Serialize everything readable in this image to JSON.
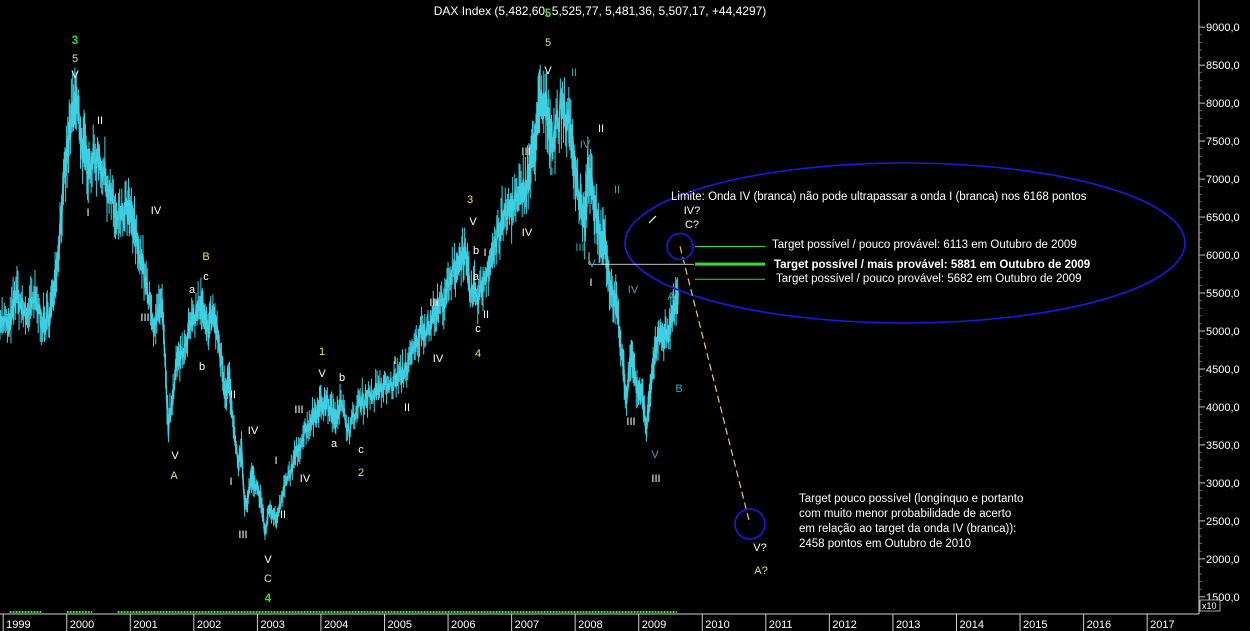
{
  "colors": {
    "background": "#000000",
    "price": "#3fd0e0",
    "yellow": "#e8e060",
    "green": "#33dd33",
    "white": "#ffffff",
    "blue": "#1a1ae0",
    "cyan_label": "#2fa8b8",
    "target_line": "#33dd33",
    "projection": "#e8c070"
  },
  "chart_data": {
    "type": "line",
    "title": "DAX Index (5,482,60, 5,525,77, 5,481,36, 5,507,17, +44,4297)",
    "x_ticks": [
      "1999",
      "2000",
      "2001",
      "2002",
      "2003",
      "2004",
      "2005",
      "2006",
      "2007",
      "2008",
      "2009",
      "2010",
      "2011",
      "2012",
      "2013",
      "2014",
      "2015",
      "2016",
      "2017"
    ],
    "y_ticks": [
      "1500,0",
      "2000,0",
      "2500,0",
      "3000,0",
      "3500,0",
      "4000,0",
      "4500,0",
      "5000,0",
      "5500,0",
      "6000,0",
      "6500,0",
      "7000,0",
      "7500,0",
      "8000,0",
      "8500,0",
      "9000,0"
    ],
    "y_unit_label": "x10",
    "ylim": [
      1300,
      9200
    ],
    "xlim": [
      1998.95,
      2017.8
    ],
    "series": [
      {
        "name": "DAX",
        "x": [
          1998.95,
          1999.1,
          1999.2,
          1999.35,
          1999.5,
          1999.65,
          1999.75,
          1999.85,
          1999.95,
          2000.05,
          2000.15,
          2000.25,
          2000.35,
          2000.5,
          2000.65,
          2000.8,
          2000.95,
          2001.05,
          2001.2,
          2001.35,
          2001.5,
          2001.6,
          2001.71,
          2001.8,
          2001.95,
          2002.1,
          2002.2,
          2002.3,
          2002.4,
          2002.5,
          2002.55,
          2002.6,
          2002.7,
          2002.75,
          2002.8,
          2002.9,
          2002.95,
          2003.05,
          2003.12,
          2003.2,
          2003.3,
          2003.45,
          2003.6,
          2003.75,
          2003.9,
          2004.0,
          2004.1,
          2004.2,
          2004.3,
          2004.45,
          2004.6,
          2004.75,
          2004.95,
          2005.1,
          2005.25,
          2005.4,
          2005.55,
          2005.7,
          2005.85,
          2006.0,
          2006.15,
          2006.25,
          2006.35,
          2006.5,
          2006.65,
          2006.8,
          2006.95,
          2007.1,
          2007.25,
          2007.35,
          2007.45,
          2007.55,
          2007.65,
          2007.8,
          2007.95,
          2008.05,
          2008.15,
          2008.2,
          2008.3,
          2008.4,
          2008.45,
          2008.55,
          2008.65,
          2008.75,
          2008.8,
          2008.88,
          2008.95,
          2009.05,
          2009.12,
          2009.18,
          2009.25,
          2009.35,
          2009.45,
          2009.55,
          2009.62
        ],
        "y": [
          5150,
          5050,
          5500,
          5200,
          5400,
          5050,
          5300,
          5900,
          6900,
          7650,
          8050,
          7400,
          7200,
          7300,
          6900,
          6400,
          6600,
          6350,
          5850,
          5100,
          5300,
          3700,
          4500,
          4700,
          5100,
          5350,
          5000,
          5250,
          4800,
          4200,
          4350,
          3900,
          3200,
          3500,
          2650,
          3050,
          3000,
          2800,
          2350,
          2700,
          2500,
          3000,
          3350,
          3700,
          3900,
          4050,
          4050,
          3850,
          4050,
          3700,
          4050,
          4150,
          4250,
          4300,
          4400,
          4600,
          4950,
          5100,
          5300,
          5550,
          5900,
          6050,
          5500,
          5500,
          5900,
          6300,
          6600,
          6700,
          7000,
          7400,
          8000,
          7900,
          7500,
          8000,
          7500,
          6800,
          6400,
          7100,
          6700,
          6200,
          6300,
          5600,
          5300,
          4600,
          4100,
          4700,
          4300,
          4200,
          3700,
          4200,
          4700,
          5000,
          4900,
          5250,
          5450
        ]
      }
    ],
    "wave_labels": [
      {
        "text": "3",
        "color": "green"
      },
      {
        "text": "5",
        "color": "yellow"
      },
      {
        "text": "V",
        "color": "white"
      },
      {
        "text": "II",
        "color": "white"
      },
      {
        "text": "I",
        "color": "white"
      },
      {
        "text": "IV",
        "color": "white"
      },
      {
        "text": "III",
        "color": "white"
      },
      {
        "text": "a",
        "color": "white"
      },
      {
        "text": "c",
        "color": "white"
      },
      {
        "text": "B",
        "color": "yellow"
      },
      {
        "text": "b",
        "color": "white"
      },
      {
        "text": "V",
        "color": "white"
      },
      {
        "text": "A",
        "color": "yellow"
      },
      {
        "text": "II",
        "color": "white"
      },
      {
        "text": "IV",
        "color": "white"
      },
      {
        "text": "I",
        "color": "white"
      },
      {
        "text": "III",
        "color": "white"
      },
      {
        "text": "V",
        "color": "white"
      },
      {
        "text": "C",
        "color": "yellow"
      },
      {
        "text": "4",
        "color": "green"
      },
      {
        "text": "II",
        "color": "white"
      },
      {
        "text": "I",
        "color": "white"
      },
      {
        "text": "III",
        "color": "white"
      },
      {
        "text": "IV",
        "color": "white"
      },
      {
        "text": "1",
        "color": "yellow"
      },
      {
        "text": "V",
        "color": "white"
      },
      {
        "text": "b",
        "color": "white"
      },
      {
        "text": "a",
        "color": "white"
      },
      {
        "text": "c",
        "color": "white"
      },
      {
        "text": "2",
        "color": "yellow"
      },
      {
        "text": "II",
        "color": "white"
      },
      {
        "text": "I",
        "color": "white"
      },
      {
        "text": "III",
        "color": "white"
      },
      {
        "text": "IV",
        "color": "white"
      },
      {
        "text": "3",
        "color": "yellow"
      },
      {
        "text": "V",
        "color": "white"
      },
      {
        "text": "b",
        "color": "white"
      },
      {
        "text": "I",
        "color": "white"
      },
      {
        "text": "a",
        "color": "white"
      },
      {
        "text": "II",
        "color": "white"
      },
      {
        "text": "c",
        "color": "white"
      },
      {
        "text": "4",
        "color": "yellow"
      },
      {
        "text": "IV",
        "color": "white"
      },
      {
        "text": "5",
        "color": "yellow"
      },
      {
        "text": "V",
        "color": "white"
      },
      {
        "text": "II",
        "color": "cyan"
      },
      {
        "text": "III",
        "color": "white"
      },
      {
        "text": "I",
        "color": "cyan"
      },
      {
        "text": "II",
        "color": "white"
      },
      {
        "text": "IV",
        "color": "cyan"
      },
      {
        "text": "II",
        "color": "cyan"
      },
      {
        "text": "III",
        "color": "cyan"
      },
      {
        "text": "V",
        "color": "cyan"
      },
      {
        "text": "I",
        "color": "white"
      },
      {
        "text": "IV",
        "color": "cyan"
      },
      {
        "text": "I",
        "color": "cyan"
      },
      {
        "text": "III",
        "color": "white"
      },
      {
        "text": "V",
        "color": "cyan"
      },
      {
        "text": "III",
        "color": "white"
      },
      {
        "text": "A",
        "color": "cyan"
      },
      {
        "text": "B",
        "color": "cyan"
      },
      {
        "text": "IV?",
        "color": "white"
      },
      {
        "text": "C?",
        "color": "white"
      },
      {
        "text": "V?",
        "color": "white"
      },
      {
        "text": "A?",
        "color": "yellow"
      },
      {
        "text": "5",
        "color": "green"
      }
    ],
    "annotations": {
      "limit": "Limite: Onda IV (branca) não pode ultrapassar a onda I (branca) nos 6168 pontos",
      "target1": "Target possível / pouco provável: 6113 em Outubro de 2009",
      "target2": "Target possível / mais provável: 5881 em Outubro de 2009",
      "target3": "Target possível / pouco provável: 5682 em Outubro de 2009",
      "far_target_lines": [
        "Target pouco possível (longínquo e portanto",
        "com muito menor probabilidade de acerto",
        "em relação ao target da onda IV (branca)):",
        "2458 pontos em Outubro de 2010"
      ]
    },
    "levels": {
      "limit_level": 6168,
      "target_high": 6113,
      "target_mid": 5881,
      "target_low": 5682,
      "far_target": 2458
    },
    "projection": {
      "x": [
        2009.65,
        2010.75
      ],
      "y": [
        6113,
        2458
      ]
    }
  }
}
